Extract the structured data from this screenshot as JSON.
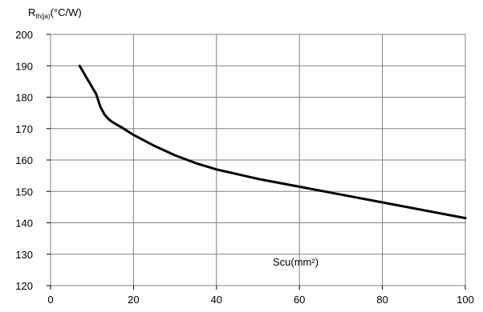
{
  "chart_data": {
    "type": "line",
    "ylabel_main": "R",
    "ylabel_sub": "th(ja)",
    "ylabel_unit": "(°C/W)",
    "xlabel": "Scu(mm²)",
    "xlim": [
      0,
      100
    ],
    "ylim": [
      120,
      200
    ],
    "xticks": [
      0,
      20,
      40,
      60,
      80,
      100
    ],
    "yticks": [
      120,
      130,
      140,
      150,
      160,
      170,
      180,
      190,
      200
    ],
    "grid": true,
    "line_color": "#000000",
    "grid_color": "#808080",
    "series": [
      {
        "x": [
          7,
          9,
          11,
          12,
          13,
          14,
          15,
          17,
          20,
          25,
          30,
          35,
          40,
          50,
          60,
          70,
          80,
          90,
          100
        ],
        "y": [
          190,
          185.5,
          181,
          177,
          174.5,
          173,
          172,
          170.5,
          168,
          164.5,
          161.5,
          159,
          157,
          154,
          151.5,
          149,
          146.5,
          144,
          141.5
        ]
      }
    ]
  }
}
